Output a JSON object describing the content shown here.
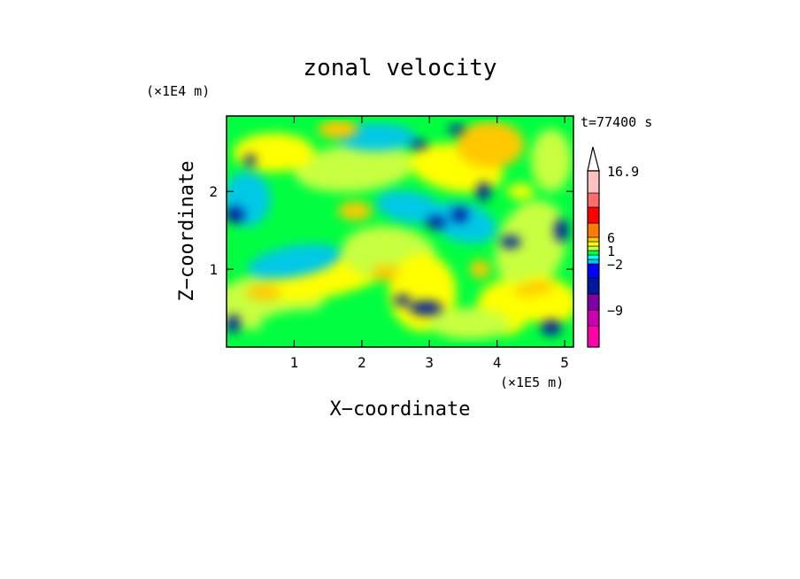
{
  "chart_data": {
    "type": "heatmap",
    "title": "zonal velocity",
    "xlabel": "X−coordinate",
    "ylabel": "Z−coordinate",
    "x_scale_label": "(×1E5 m)",
    "y_scale_label": "(×1E4 m)",
    "time_label": "t=77400 s",
    "xlim": [
      0,
      5.13
    ],
    "ylim": [
      0,
      2.97
    ],
    "x_ticks": [
      1,
      2,
      3,
      4,
      5
    ],
    "y_ticks": [
      1,
      2
    ],
    "colorbar": {
      "levels": [
        -15,
        -12,
        -9,
        -6,
        -3,
        -2,
        -1,
        0,
        1,
        2,
        3,
        6,
        9,
        12,
        16.9
      ],
      "colors": [
        "#ff00aa",
        "#cc00b0",
        "#8000a8",
        "#0018a0",
        "#0000ff",
        "#00c8e6",
        "#00ffff",
        "#00ff40",
        "#c8ff40",
        "#ffff00",
        "#ffc800",
        "#ff7a00",
        "#ff0000",
        "#ff6c6c",
        "#ffc0c0"
      ],
      "tick_labels": [
        "16.9",
        "6",
        "1",
        "−2",
        "−9"
      ],
      "tick_values": [
        16.9,
        6,
        1,
        -2,
        -9
      ],
      "extend": "max"
    }
  }
}
